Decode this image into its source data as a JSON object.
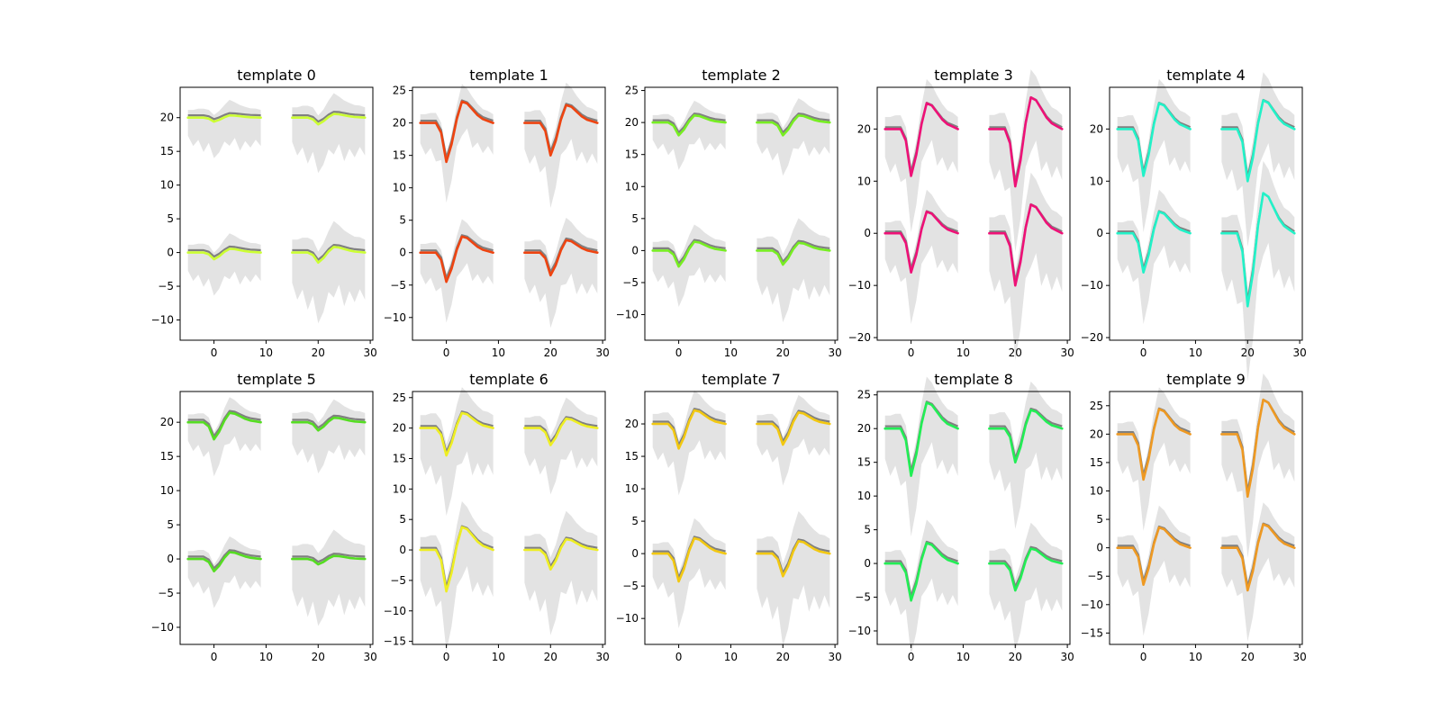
{
  "chart_data": {
    "type": "line",
    "subplot_grid": {
      "rows": 2,
      "cols": 5
    },
    "x_ticks": [
      0,
      10,
      20,
      30
    ],
    "xlim": [
      -6.5,
      30.5
    ],
    "envelope_color": "#cccccc",
    "mean_color": "#808080",
    "shape": {
      "x_left": [
        -5,
        -4,
        -3,
        -2,
        -1,
        0,
        1,
        2,
        3,
        4,
        5,
        6,
        7,
        8,
        9
      ],
      "x_right": [
        15,
        16,
        17,
        18,
        19,
        20,
        21,
        22,
        23,
        24,
        25,
        26,
        27,
        28,
        29
      ],
      "waveform": [
        0,
        0,
        0,
        0,
        -0.25,
        -1,
        -0.55,
        0.1,
        0.55,
        0.5,
        0.35,
        0.2,
        0.1,
        0.05,
        0
      ],
      "envelope_upper": [
        0.35,
        0.35,
        0.4,
        0.4,
        0.4,
        0.3,
        0.4,
        0.55,
        0.7,
        0.6,
        0.5,
        0.45,
        0.4,
        0.4,
        0.35
      ],
      "envelope_lower": [
        0.45,
        0.7,
        0.55,
        0.85,
        0.6,
        0.9,
        0.8,
        0.6,
        0.75,
        0.55,
        0.85,
        0.6,
        0.75,
        0.55,
        0.7
      ]
    },
    "subplots": [
      {
        "title": "template 0",
        "color": "#ccff33",
        "yticks": [
          -10,
          -5,
          0,
          5,
          10,
          15,
          20
        ],
        "ylim": [
          -13,
          24.5
        ],
        "traces": [
          {
            "offset": 20,
            "side": "left",
            "amp": 0.6,
            "env": 6
          },
          {
            "offset": 20,
            "side": "right",
            "amp": 1.0,
            "env": 8
          },
          {
            "offset": 0,
            "side": "left",
            "amp": 1.0,
            "env": 6
          },
          {
            "offset": 0,
            "side": "right",
            "amp": 1.5,
            "env": 10
          }
        ]
      },
      {
        "title": "template 1",
        "color": "#ee4411",
        "yticks": [
          -10,
          -5,
          0,
          5,
          10,
          15,
          20,
          25
        ],
        "ylim": [
          -13.5,
          25.5
        ],
        "traces": [
          {
            "offset": 20,
            "side": "left",
            "amp": 6,
            "env": 7
          },
          {
            "offset": 20,
            "side": "right",
            "amp": 5,
            "env": 9
          },
          {
            "offset": 0,
            "side": "left",
            "amp": 4.5,
            "env": 7
          },
          {
            "offset": 0,
            "side": "right",
            "amp": 3.5,
            "env": 9
          }
        ]
      },
      {
        "title": "template 2",
        "color": "#77ee22",
        "yticks": [
          -10,
          -5,
          0,
          5,
          10,
          15,
          20,
          25
        ],
        "ylim": [
          -14,
          25.5
        ],
        "traces": [
          {
            "offset": 20,
            "side": "left",
            "amp": 2,
            "env": 6
          },
          {
            "offset": 20,
            "side": "right",
            "amp": 2,
            "env": 7
          },
          {
            "offset": 0,
            "side": "left",
            "amp": 2.5,
            "env": 7
          },
          {
            "offset": 0,
            "side": "right",
            "amp": 2.2,
            "env": 10
          }
        ]
      },
      {
        "title": "template 3",
        "color": "#ee1177",
        "yticks": [
          -20,
          -10,
          0,
          10,
          20
        ],
        "ylim": [
          -20.5,
          28
        ],
        "traces": [
          {
            "offset": 20,
            "side": "left",
            "amp": 9,
            "env": 12
          },
          {
            "offset": 20,
            "side": "right",
            "amp": 11,
            "env": 14
          },
          {
            "offset": 0,
            "side": "left",
            "amp": 7.5,
            "env": 11
          },
          {
            "offset": 0,
            "side": "right",
            "amp": 10,
            "env": 16
          }
        ]
      },
      {
        "title": "template 4",
        "color": "#22f2c8",
        "yticks": [
          -20,
          -10,
          0,
          10,
          20
        ],
        "ylim": [
          -20.5,
          28
        ],
        "traces": [
          {
            "offset": 20,
            "side": "left",
            "amp": 9,
            "env": 12
          },
          {
            "offset": 20,
            "side": "right",
            "amp": 10,
            "env": 14
          },
          {
            "offset": 0,
            "side": "left",
            "amp": 7.5,
            "env": 11
          },
          {
            "offset": 0,
            "side": "right",
            "amp": 14,
            "env": 16
          }
        ]
      },
      {
        "title": "template 5",
        "color": "#55dd22",
        "yticks": [
          -10,
          -5,
          0,
          5,
          10,
          15,
          20
        ],
        "ylim": [
          -12.5,
          24.5
        ],
        "traces": [
          {
            "offset": 20,
            "side": "left",
            "amp": 2.5,
            "env": 6
          },
          {
            "offset": 20,
            "side": "right",
            "amp": 1.2,
            "env": 7
          },
          {
            "offset": 0,
            "side": "left",
            "amp": 1.8,
            "env": 6
          },
          {
            "offset": 0,
            "side": "right",
            "amp": 0.8,
            "env": 10
          }
        ]
      },
      {
        "title": "template 6",
        "color": "#eeee22",
        "yticks": [
          -15,
          -10,
          -5,
          0,
          5,
          10,
          15,
          20,
          25
        ],
        "ylim": [
          -15.5,
          26
        ],
        "traces": [
          {
            "offset": 20,
            "side": "left",
            "amp": 4.5,
            "env": 11
          },
          {
            "offset": 20,
            "side": "right",
            "amp": 2.8,
            "env": 9
          },
          {
            "offset": 0,
            "side": "left",
            "amp": 6.8,
            "env": 11
          },
          {
            "offset": 0,
            "side": "right",
            "amp": 3.2,
            "env": 12
          }
        ]
      },
      {
        "title": "template 7",
        "color": "#f2c811",
        "yticks": [
          -10,
          -5,
          0,
          5,
          10,
          15,
          20
        ],
        "ylim": [
          -14,
          25
        ],
        "traces": [
          {
            "offset": 20,
            "side": "left",
            "amp": 3.8,
            "env": 8
          },
          {
            "offset": 20,
            "side": "right",
            "amp": 3.2,
            "env": 7
          },
          {
            "offset": 0,
            "side": "left",
            "amp": 4.3,
            "env": 8
          },
          {
            "offset": 0,
            "side": "right",
            "amp": 3.5,
            "env": 12
          }
        ]
      },
      {
        "title": "template 8",
        "color": "#22ee55",
        "yticks": [
          -10,
          -5,
          0,
          5,
          10,
          15,
          20,
          25
        ],
        "ylim": [
          -12,
          25.5
        ],
        "traces": [
          {
            "offset": 20,
            "side": "left",
            "amp": 7,
            "env": 10
          },
          {
            "offset": 20,
            "side": "right",
            "amp": 5,
            "env": 11
          },
          {
            "offset": 0,
            "side": "left",
            "amp": 5.5,
            "env": 9
          },
          {
            "offset": 0,
            "side": "right",
            "amp": 4,
            "env": 10
          }
        ]
      },
      {
        "title": "template 9",
        "color": "#ee9922",
        "yticks": [
          -15,
          -10,
          -5,
          0,
          5,
          10,
          15,
          20,
          25
        ],
        "ylim": [
          -17,
          27.5
        ],
        "traces": [
          {
            "offset": 20,
            "side": "left",
            "amp": 8,
            "env": 10
          },
          {
            "offset": 20,
            "side": "right",
            "amp": 11,
            "env": 12
          },
          {
            "offset": 0,
            "side": "left",
            "amp": 6.5,
            "env": 10
          },
          {
            "offset": 0,
            "side": "right",
            "amp": 7.5,
            "env": 10
          }
        ]
      }
    ]
  }
}
